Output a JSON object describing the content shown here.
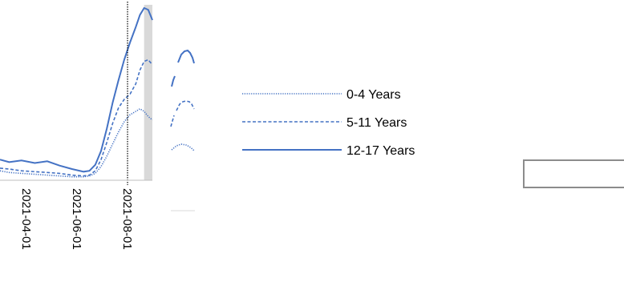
{
  "chart_data": {
    "type": "line",
    "x_tick_labels": [
      "2021-04-01",
      "2021-06-01",
      "2021-08-01"
    ],
    "x_tick_dates": [
      "2021-04-01",
      "2021-06-01",
      "2021-08-01"
    ],
    "xlim": [
      "2021-02-27",
      "2021-08-30"
    ],
    "ylim": [
      0,
      100
    ],
    "reference_line_date": "2021-07-31",
    "shaded_region": [
      "2021-08-20",
      "2021-08-30"
    ],
    "grid": false,
    "legend_position": "right",
    "series": [
      {
        "name": "0-4 Years",
        "style": "dotted",
        "x": [
          "2021-02-27",
          "2021-03-10",
          "2021-03-25",
          "2021-04-10",
          "2021-04-25",
          "2021-05-10",
          "2021-05-25",
          "2021-06-08",
          "2021-06-15",
          "2021-06-22",
          "2021-06-29",
          "2021-07-06",
          "2021-07-13",
          "2021-07-20",
          "2021-07-27",
          "2021-08-03",
          "2021-08-10",
          "2021-08-15",
          "2021-08-20",
          "2021-08-25",
          "2021-08-30"
        ],
        "y": [
          5.5,
          4.5,
          4.0,
          3.5,
          3.0,
          2.5,
          2.0,
          2.0,
          2.5,
          4.0,
          8.0,
          14.0,
          21.0,
          28.0,
          34.0,
          38.0,
          40.0,
          41.5,
          40.0,
          37.0,
          35.0
        ]
      },
      {
        "name": "5-11 Years",
        "style": "dashed",
        "x": [
          "2021-02-27",
          "2021-03-10",
          "2021-03-25",
          "2021-04-10",
          "2021-04-25",
          "2021-05-10",
          "2021-05-25",
          "2021-06-08",
          "2021-06-15",
          "2021-06-22",
          "2021-06-29",
          "2021-07-06",
          "2021-07-13",
          "2021-07-20",
          "2021-07-27",
          "2021-08-03",
          "2021-08-10",
          "2021-08-15",
          "2021-08-20",
          "2021-08-25",
          "2021-08-30"
        ],
        "y": [
          7.0,
          6.5,
          5.5,
          5.0,
          4.5,
          4.0,
          3.0,
          2.5,
          3.0,
          5.5,
          12.0,
          22.0,
          33.0,
          42.0,
          47.0,
          50.0,
          56.0,
          64.0,
          69.0,
          70.0,
          67.0
        ]
      },
      {
        "name": "12-17 Years",
        "style": "solid",
        "x": [
          "2021-02-27",
          "2021-03-10",
          "2021-03-25",
          "2021-04-10",
          "2021-04-25",
          "2021-05-10",
          "2021-05-25",
          "2021-06-08",
          "2021-06-15",
          "2021-06-22",
          "2021-06-29",
          "2021-07-06",
          "2021-07-13",
          "2021-07-20",
          "2021-07-27",
          "2021-08-03",
          "2021-08-10",
          "2021-08-15",
          "2021-08-20",
          "2021-08-25",
          "2021-08-30"
        ],
        "y": [
          12.0,
          10.5,
          11.5,
          10.0,
          11.0,
          8.5,
          6.5,
          5.0,
          5.5,
          9.0,
          17.0,
          30.0,
          45.0,
          58.0,
          70.0,
          80.0,
          89.0,
          96.0,
          100.0,
          99.0,
          93.0
        ]
      }
    ],
    "legend": [
      "0-4 Years",
      "5-11 Years",
      "12-17 Years"
    ]
  },
  "colors": {
    "series": "#4472c4",
    "reference_line": "#000000",
    "shade": "#d9d9d9",
    "axis": "#bfbfbf",
    "box_border": "#8c8c8c"
  }
}
